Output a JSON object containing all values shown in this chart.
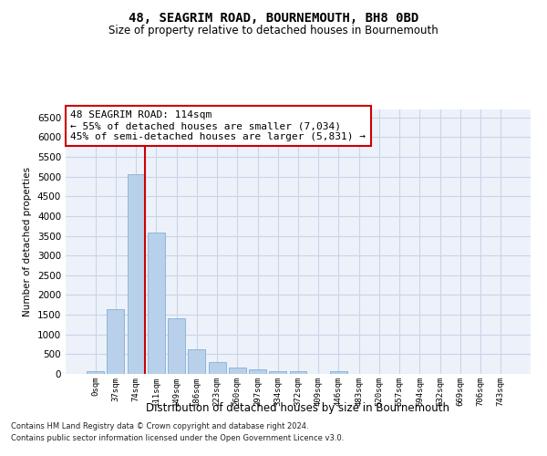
{
  "title": "48, SEAGRIM ROAD, BOURNEMOUTH, BH8 0BD",
  "subtitle": "Size of property relative to detached houses in Bournemouth",
  "xlabel": "Distribution of detached houses by size in Bournemouth",
  "ylabel": "Number of detached properties",
  "footnote1": "Contains HM Land Registry data © Crown copyright and database right 2024.",
  "footnote2": "Contains public sector information licensed under the Open Government Licence v3.0.",
  "categories": [
    "0sqm",
    "37sqm",
    "74sqm",
    "111sqm",
    "149sqm",
    "186sqm",
    "223sqm",
    "260sqm",
    "297sqm",
    "334sqm",
    "372sqm",
    "409sqm",
    "446sqm",
    "483sqm",
    "520sqm",
    "557sqm",
    "594sqm",
    "632sqm",
    "669sqm",
    "706sqm",
    "743sqm"
  ],
  "bar_values": [
    75,
    1650,
    5070,
    3570,
    1420,
    620,
    290,
    155,
    110,
    80,
    65,
    0,
    70,
    0,
    0,
    0,
    0,
    0,
    0,
    0,
    0
  ],
  "bar_color": "#b8d0ea",
  "bar_edge_color": "#85aed4",
  "grid_color": "#c8d4e8",
  "background_color": "#edf2fa",
  "red_line_color": "#cc0000",
  "annotation_line1": "48 SEAGRIM ROAD: 114sqm",
  "annotation_line2": "← 55% of detached houses are smaller (7,034)",
  "annotation_line3": "45% of semi-detached houses are larger (5,831) →",
  "annotation_box_color": "#ffffff",
  "annotation_box_edge": "#cc0000",
  "ylim": [
    0,
    6700
  ],
  "yticks": [
    0,
    500,
    1000,
    1500,
    2000,
    2500,
    3000,
    3500,
    4000,
    4500,
    5000,
    5500,
    6000,
    6500
  ]
}
